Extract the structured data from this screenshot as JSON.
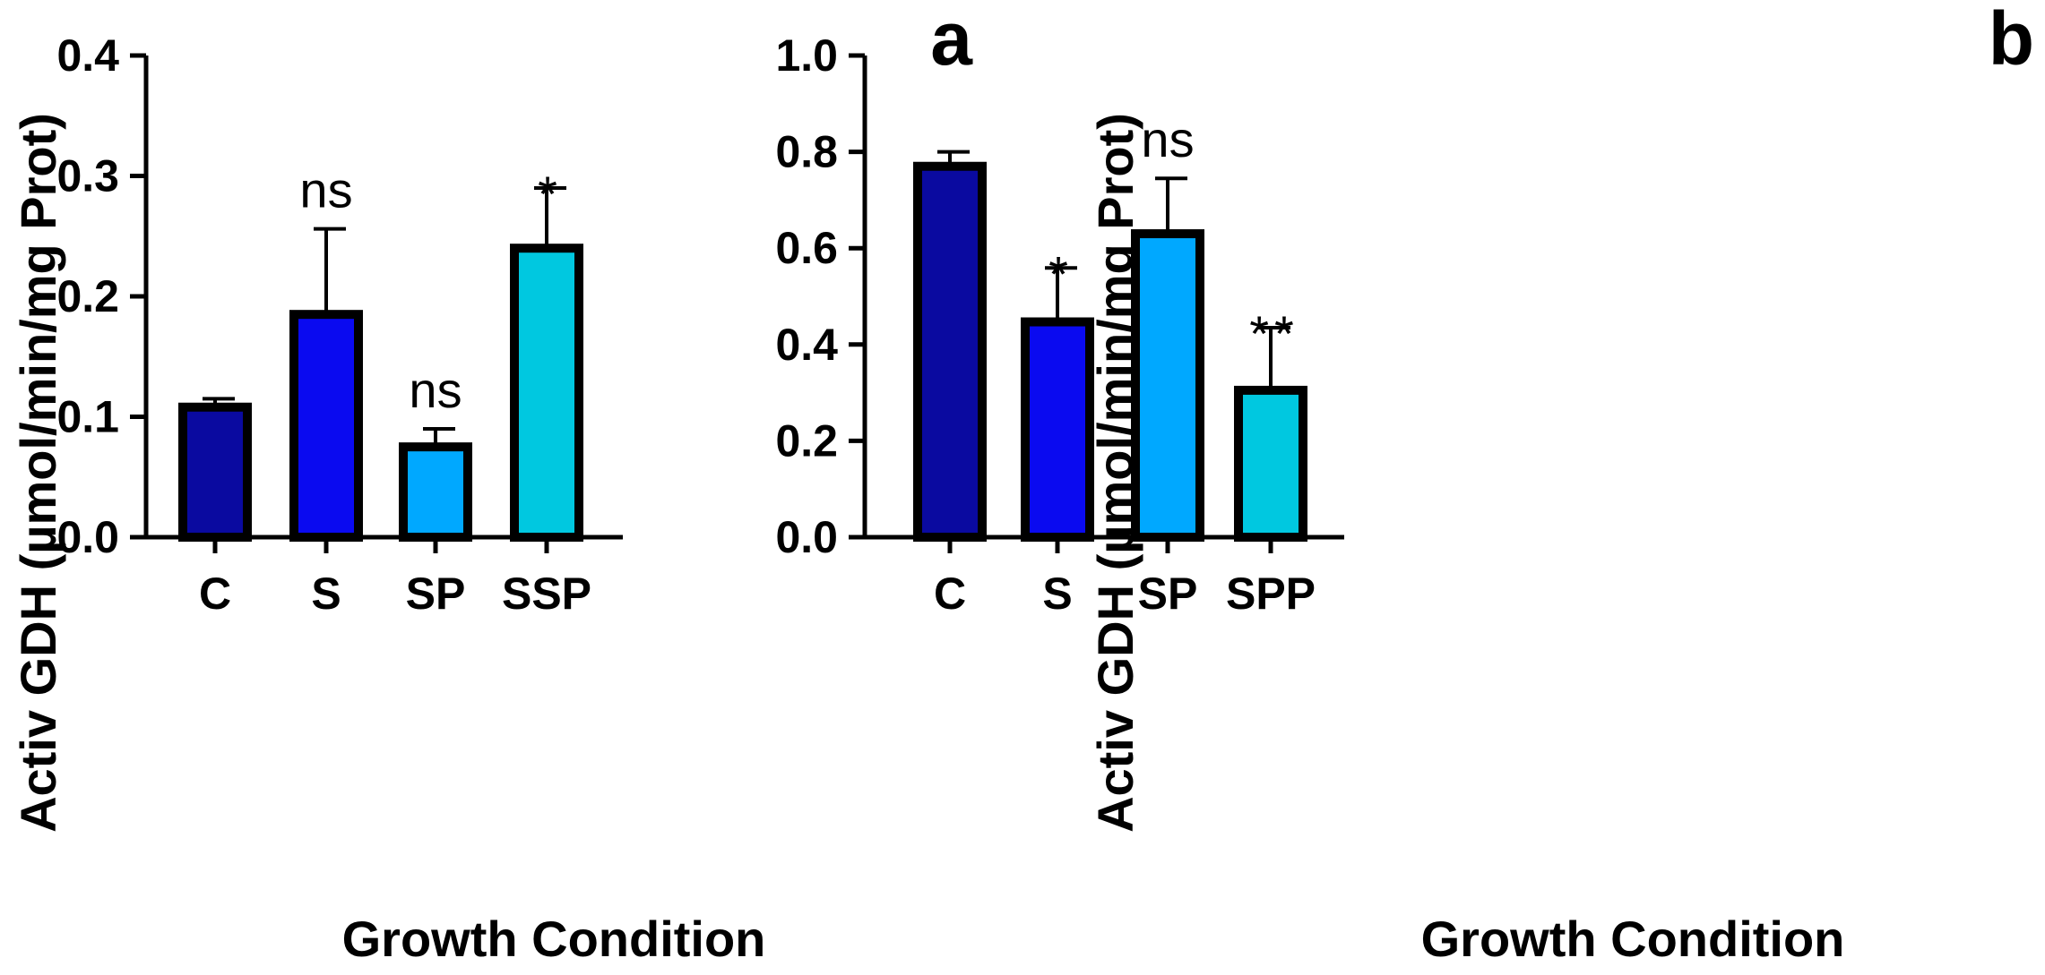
{
  "chart_data": [
    {
      "type": "bar",
      "panel_label": "a",
      "xlabel": "Growth Condition",
      "ylabel": "Activ GDH (µmol/min/mg Prot)",
      "ylim": [
        0,
        0.4
      ],
      "yticks": [
        "0.0",
        "0.1",
        "0.2",
        "0.3",
        "0.4"
      ],
      "ytick_values": [
        0,
        0.1,
        0.2,
        0.3,
        0.4
      ],
      "categories": [
        "C",
        "S",
        "SP",
        "SSP"
      ],
      "values": [
        0.108,
        0.185,
        0.075,
        0.24
      ],
      "errors": [
        0.007,
        0.071,
        0.015,
        0.05
      ],
      "significance": [
        "",
        "ns",
        "ns",
        "*"
      ],
      "colors": [
        "#0a0aa0",
        "#0a0af0",
        "#00a8ff",
        "#00c8e0"
      ]
    },
    {
      "type": "bar",
      "panel_label": "b",
      "xlabel": "Growth Condition",
      "ylabel": "Activ GDH (µmol/min/mg Prot)",
      "ylim": [
        0,
        1.0
      ],
      "yticks": [
        "0.0",
        "0.2",
        "0.4",
        "0.6",
        "0.8",
        "1.0"
      ],
      "ytick_values": [
        0,
        0.2,
        0.4,
        0.6,
        0.8,
        1.0
      ],
      "categories": [
        "C",
        "S",
        "SP",
        "SPP"
      ],
      "values": [
        0.77,
        0.447,
        0.63,
        0.305
      ],
      "errors": [
        0.03,
        0.112,
        0.115,
        0.13
      ],
      "significance": [
        "",
        "*",
        "ns",
        "**"
      ],
      "colors": [
        "#0a0aa0",
        "#0a0af0",
        "#00a8ff",
        "#00c8e0"
      ]
    }
  ]
}
